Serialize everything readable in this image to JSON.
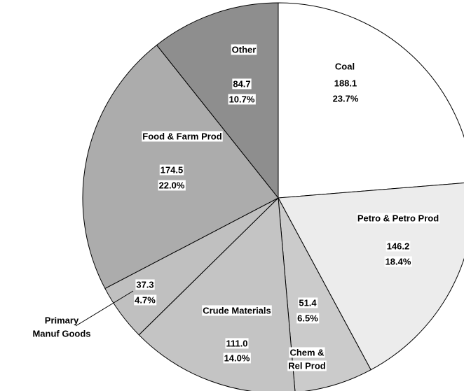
{
  "chart_data": {
    "type": "pie",
    "categories": [
      "Coal",
      "Petro & Petro Prod",
      [
        "Chem &",
        "Rel Prod"
      ],
      "Crude Materials",
      [
        "Primary",
        "Manuf Goods"
      ],
      "Food & Farm Prod",
      "Other"
    ],
    "values": [
      188.1,
      146.2,
      51.4,
      111.0,
      37.3,
      174.5,
      84.7
    ],
    "value_labels": [
      "188.1",
      "146.2",
      "51.4",
      "111.0",
      "37.3",
      "174.5",
      "84.7"
    ],
    "percentages": [
      23.7,
      18.4,
      6.5,
      14.0,
      4.7,
      22.0,
      10.7
    ],
    "percentage_labels": [
      "23.7%",
      "18.4%",
      "6.5%",
      "14.0%",
      "4.7%",
      "22.0%",
      "10.7%"
    ],
    "colors": [
      "#ffffff",
      "#ececec",
      "#cbcbcb",
      "#c4c4c4",
      "#c0c0c0",
      "#acacac",
      "#8e8e8e"
    ]
  }
}
